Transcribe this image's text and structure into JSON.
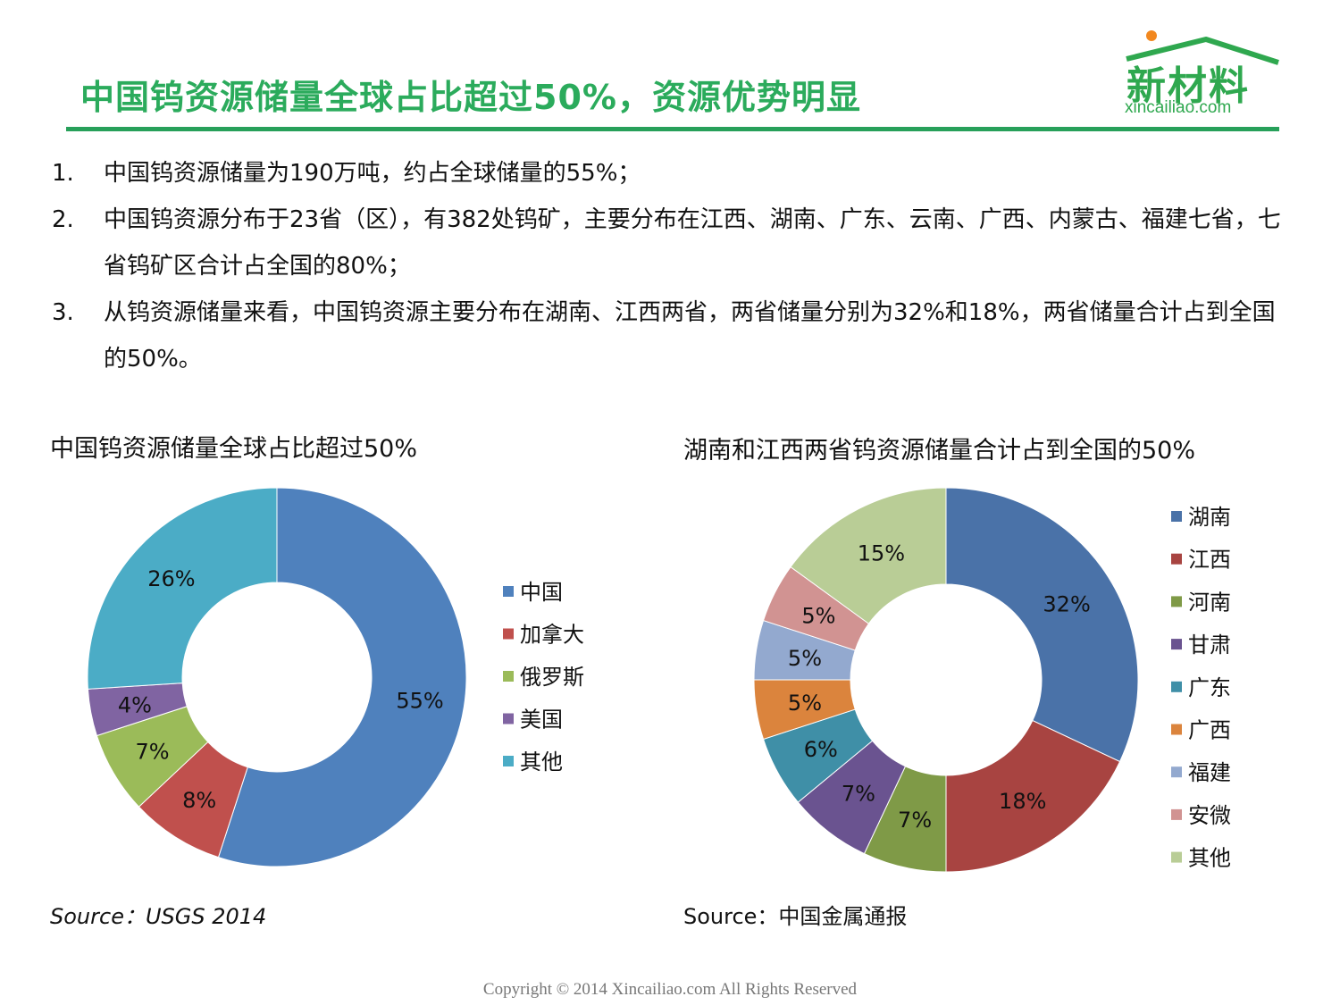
{
  "header": {
    "title": "中国钨资源储量全球占比超过50%，资源优势明显",
    "logo_text": "新材料",
    "logo_url": "xincailiao.com"
  },
  "bullets": [
    {
      "num": "1.",
      "text": "中国钨资源储量为190万吨，约占全球储量的55%；"
    },
    {
      "num": "2.",
      "text": "中国钨资源分布于23省（区），有382处钨矿，主要分布在江西、湖南、广东、云南、广西、内蒙古、福建七省，七省钨矿区合计占全国的80%；"
    },
    {
      "num": "3.",
      "text": "从钨资源储量来看，中国钨资源主要分布在湖南、江西两省，两省储量分别为32%和18%，两省储量合计占到全国的50%。"
    }
  ],
  "chart_data": [
    {
      "type": "pie",
      "title": "中国钨资源储量全球占比超过50%",
      "categories": [
        "中国",
        "加拿大",
        "俄罗斯",
        "美国",
        "其他"
      ],
      "values": [
        55,
        8,
        7,
        4,
        26
      ],
      "labels": [
        "55%",
        "8%",
        "7%",
        "4%",
        "26%"
      ],
      "colors": [
        "#4f81bd",
        "#c0504d",
        "#9bbb59",
        "#8064a2",
        "#4bacc6"
      ],
      "legend": "right",
      "source": "Source：USGS 2014"
    },
    {
      "type": "pie",
      "title": "湖南和江西两省钨资源储量合计占到全国的50%",
      "categories": [
        "湖南",
        "江西",
        "河南",
        "甘肃",
        "广东",
        "广西",
        "福建",
        "安微",
        "其他"
      ],
      "values": [
        32,
        18,
        7,
        7,
        6,
        5,
        5,
        5,
        15
      ],
      "labels": [
        "32%",
        "18%",
        "7%",
        "7%",
        "6%",
        "5%",
        "5%",
        "5%",
        "15%"
      ],
      "colors": [
        "#4a72a8",
        "#a84441",
        "#7f9a47",
        "#6a5390",
        "#3f8fa7",
        "#db843d",
        "#93a9cf",
        "#d19392",
        "#b9cd96"
      ],
      "legend": "right",
      "source": "Source：中国金属通报"
    }
  ],
  "footer": "Copyright © 2014   Xincailiao.com   All Rights Reserved"
}
